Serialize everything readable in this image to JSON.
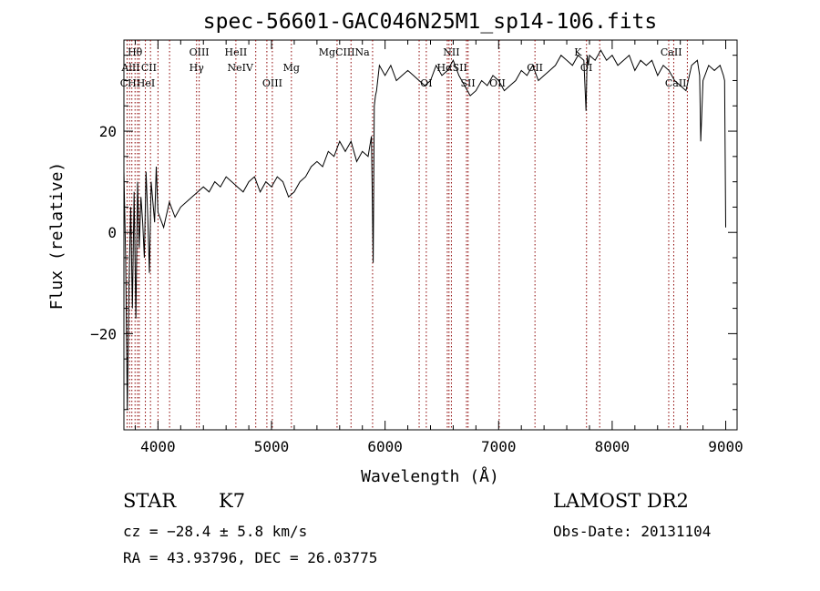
{
  "chart_data": {
    "type": "line",
    "title": "spec-56601-GAC046N25M1_sp14-106.fits",
    "xlabel": "Wavelength (Å)",
    "ylabel": "Flux (relative)",
    "xlim": [
      3700,
      9100
    ],
    "ylim": [
      -39,
      38
    ],
    "xticks": [
      4000,
      5000,
      6000,
      7000,
      8000,
      9000
    ],
    "yticks": [
      -20,
      0,
      20
    ],
    "grid": false,
    "line_color": "#000000",
    "marker_color": "#8b0000",
    "series": [
      {
        "x": [
          3700,
          3715,
          3730,
          3745,
          3760,
          3775,
          3790,
          3805,
          3820,
          3835,
          3850,
          3865,
          3880,
          3895,
          3910,
          3925,
          3940,
          3955,
          3970,
          3985,
          4000,
          4050,
          4100,
          4150,
          4200,
          4250,
          4300,
          4350,
          4400,
          4450,
          4500,
          4550,
          4600,
          4650,
          4700,
          4750,
          4800,
          4850,
          4900,
          4950,
          5000,
          5050,
          5100,
          5150,
          5200,
          5250,
          5300,
          5350,
          5400,
          5450,
          5500,
          5550,
          5600,
          5625,
          5650,
          5700,
          5750,
          5800,
          5850,
          5880,
          5895,
          5905,
          5915,
          5925,
          5950,
          6000,
          6050,
          6100,
          6150,
          6200,
          6250,
          6300,
          6350,
          6400,
          6450,
          6500,
          6550,
          6600,
          6650,
          6700,
          6750,
          6800,
          6850,
          6900,
          6950,
          7000,
          7050,
          7100,
          7150,
          7200,
          7250,
          7300,
          7350,
          7400,
          7450,
          7500,
          7550,
          7600,
          7650,
          7700,
          7750,
          7770,
          7780,
          7790,
          7800,
          7850,
          7900,
          7950,
          8000,
          8050,
          8100,
          8150,
          8200,
          8250,
          8300,
          8350,
          8400,
          8450,
          8500,
          8550,
          8600,
          8650,
          8700,
          8750,
          8770,
          8780,
          8800,
          8850,
          8900,
          8950,
          8980,
          8990,
          9000
        ],
        "y": [
          12,
          -5,
          -35,
          -10,
          5,
          -15,
          8,
          -17,
          10,
          -3,
          7,
          2,
          -5,
          12,
          3,
          -8,
          10,
          6,
          2,
          13,
          4,
          1,
          6,
          3,
          5,
          6,
          7,
          8,
          9,
          8,
          10,
          9,
          11,
          10,
          9,
          8,
          10,
          11,
          8,
          10,
          9,
          11,
          10,
          7,
          8,
          10,
          11,
          13,
          14,
          13,
          16,
          15,
          18,
          17,
          16,
          18,
          14,
          16,
          15,
          19,
          -6,
          25,
          27,
          28,
          33,
          31,
          33,
          30,
          31,
          32,
          31,
          30,
          29,
          30,
          33,
          31,
          32,
          34,
          31,
          29,
          27,
          28,
          30,
          29,
          31,
          30,
          28,
          29,
          30,
          32,
          31,
          33,
          30,
          31,
          32,
          33,
          35,
          34,
          33,
          35,
          34,
          24,
          35,
          33,
          35,
          34,
          36,
          34,
          35,
          33,
          34,
          35,
          32,
          34,
          33,
          34,
          31,
          33,
          32,
          30,
          29,
          28,
          33,
          34,
          31,
          18,
          30,
          33,
          32,
          33,
          31,
          30,
          1
        ]
      }
    ],
    "line_markers": [
      {
        "label": "Hθ",
        "x": 3798,
        "row": 1
      },
      {
        "label": "AlII",
        "x": 3760,
        "row": 2
      },
      {
        "label": "CII",
        "x": 3920,
        "row": 2
      },
      {
        "label": "OIII",
        "x": 4363,
        "row": 1
      },
      {
        "label": "Hγ",
        "x": 4340,
        "row": 2
      },
      {
        "label": "HeII",
        "x": 4686,
        "row": 1
      },
      {
        "label": "NeIV",
        "x": 4725,
        "row": 2
      },
      {
        "label": "Mg",
        "x": 5175,
        "row": 2
      },
      {
        "label": "MgCIIINa",
        "x": 5640,
        "row": 1
      },
      {
        "label": "NII",
        "x": 6584,
        "row": 1
      },
      {
        "label": "HαSII",
        "x": 6590,
        "row": 2
      },
      {
        "label": "OII",
        "x": 7320,
        "row": 2
      },
      {
        "label": "OI",
        "x": 7773,
        "row": 2
      },
      {
        "label": "K",
        "x": 7699,
        "row": 1
      },
      {
        "label": "CaII",
        "x": 8520,
        "row": 1
      },
      {
        "label": "CHHeI",
        "x": 3820,
        "row": 3
      },
      {
        "label": "OIII",
        "x": 5007,
        "row": 3
      },
      {
        "label": "OI",
        "x": 6363,
        "row": 3
      },
      {
        "label": "SII",
        "x": 6730,
        "row": 3
      },
      {
        "label": "OII",
        "x": 6990,
        "row": 3
      },
      {
        "label": "CaII",
        "x": 8560,
        "row": 3
      }
    ],
    "marker_lines_x": [
      3728,
      3750,
      3770,
      3798,
      3820,
      3835,
      3889,
      3934,
      4000,
      4102,
      4340,
      4363,
      4686,
      4861,
      4959,
      5007,
      5175,
      5577,
      5700,
      5890,
      6300,
      6363,
      6548,
      6563,
      6584,
      6717,
      6731,
      7005,
      7320,
      7774,
      7890,
      8498,
      8542,
      8662
    ]
  },
  "info": {
    "object_class": "STAR",
    "subclass": "K7",
    "survey": "LAMOST DR2",
    "cz": "cz = −28.4 ± 5.8 km/s",
    "obs_date": "Obs-Date: 20131104",
    "coords": "RA =  43.93796, DEC =  26.03775"
  }
}
